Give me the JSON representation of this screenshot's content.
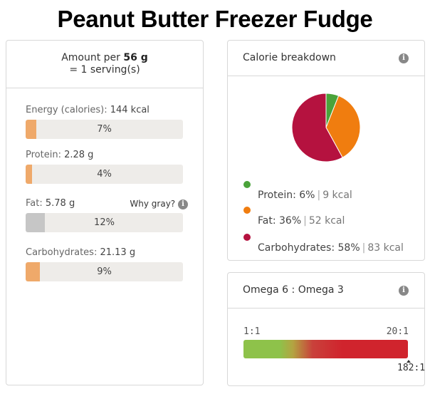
{
  "title": "Peanut Butter Freezer Fudge",
  "serving": {
    "prefix": "Amount per",
    "amount": "56 g",
    "line2": "= 1 serving(s)"
  },
  "nutrients": [
    {
      "label": "Energy (calories):",
      "value": "144 kcal",
      "pct_text": "7%",
      "pct": 7
    },
    {
      "label": "Protein:",
      "value": "2.28 g",
      "pct_text": "4%",
      "pct": 4
    },
    {
      "label": "Fat:",
      "value": "5.78 g",
      "pct_text": "12%",
      "pct": 12,
      "note": "Why gray?"
    },
    {
      "label": "Carbohydrates:",
      "value": "21.13 g",
      "pct_text": "9%",
      "pct": 9
    }
  ],
  "calorie_breakdown": {
    "title": "Calorie breakdown",
    "items": [
      {
        "name": "Protein:",
        "pct": "6%",
        "kcal": "9 kcal",
        "color": "#4aa33a",
        "share": 6
      },
      {
        "name": "Fat:",
        "pct": "36%",
        "kcal": "52 kcal",
        "color": "#f07d0f",
        "share": 36
      },
      {
        "name": "Carbohydrates:",
        "pct": "58%",
        "kcal": "83 kcal",
        "color": "#b5123f",
        "share": 58
      }
    ]
  },
  "omega": {
    "title": "Omega 6 : Omega 3",
    "min_label": "1:1",
    "max_label": "20:1",
    "value": "182:1"
  },
  "colors": {
    "bar_fill": "#efa96a",
    "bar_fill_gray": "#c6c6c6",
    "bar_bg": "#eeece9"
  },
  "icons": {
    "info": "info-icon"
  }
}
